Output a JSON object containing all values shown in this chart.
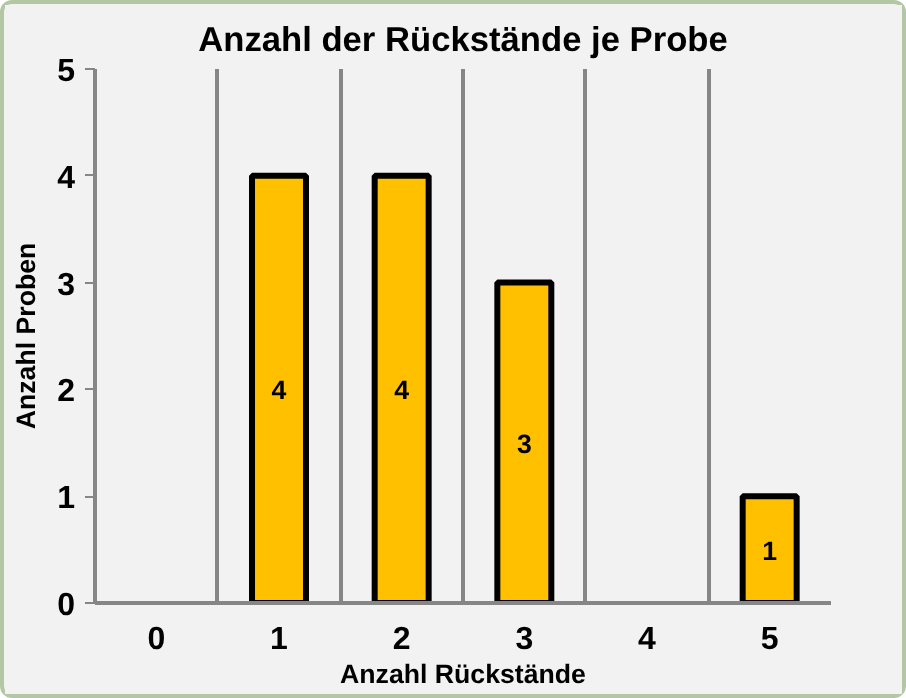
{
  "chart_data": {
    "type": "bar",
    "title": "Anzahl der Rückstände je Probe",
    "xlabel": "Anzahl Rückstände",
    "ylabel": "Anzahl Proben",
    "categories": [
      "0",
      "1",
      "2",
      "3",
      "4",
      "5"
    ],
    "values": [
      0,
      4,
      4,
      3,
      0,
      1
    ],
    "value_labels": [
      null,
      "4",
      "4",
      "3",
      null,
      "1"
    ],
    "color": "#ffc000",
    "ylim": [
      0,
      5
    ],
    "yticks": [
      0,
      1,
      2,
      3,
      4,
      5
    ],
    "grid": "x"
  }
}
